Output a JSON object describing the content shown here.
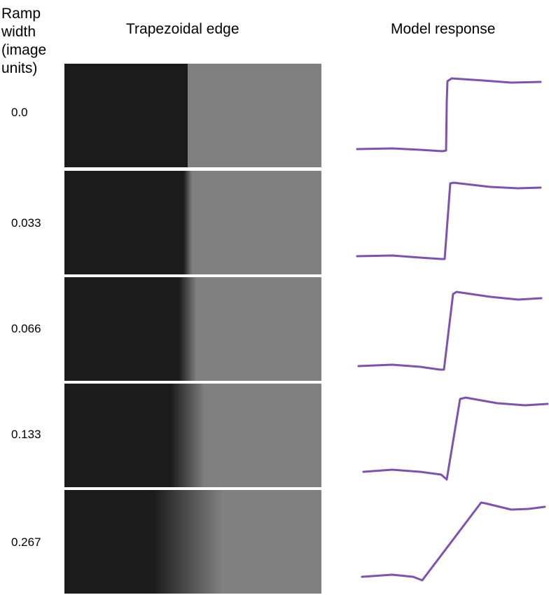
{
  "header": {
    "ramp_width_lines": [
      "Ramp",
      "width",
      "(image",
      "units)"
    ],
    "edge_title": "Trapezoidal edge",
    "response_title": "Model response"
  },
  "colors": {
    "dark": "#1b1b1b",
    "light": "#808080",
    "curve": "#7e52b0"
  },
  "rows": [
    {
      "label": "0.0",
      "ramp_width": 0.0
    },
    {
      "label": "0.033",
      "ramp_width": 0.033
    },
    {
      "label": "0.066",
      "ramp_width": 0.066
    },
    {
      "label": "0.133",
      "ramp_width": 0.133
    },
    {
      "label": "0.267",
      "ramp_width": 0.267
    }
  ]
}
